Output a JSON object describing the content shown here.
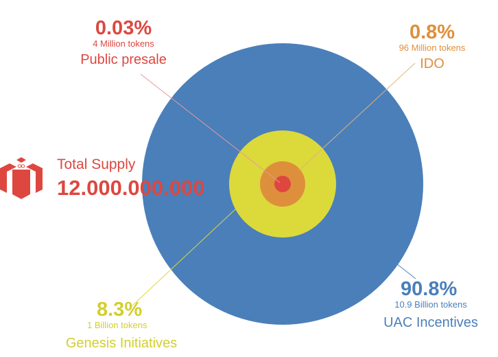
{
  "total": {
    "label": "Total Supply",
    "value": "12.000.000.000",
    "color": "#dd4740",
    "icon": "gift-box-icon"
  },
  "chart_data": {
    "type": "pie",
    "style": "nested concentric circles",
    "series": [
      {
        "name": "UAC Incentives",
        "percent_label": "90.8%",
        "tokens_label": "10.9 Billion tokens",
        "value": 90.8,
        "color": "#4a7fba"
      },
      {
        "name": "Genesis Initiatives",
        "percent_label": "8.3%",
        "tokens_label": "1 Billion tokens",
        "value": 8.3,
        "color": "#dcd93b"
      },
      {
        "name": "IDO",
        "percent_label": "0.8%",
        "tokens_label": "96 Million tokens",
        "value": 0.8,
        "color": "#de8f3c"
      },
      {
        "name": "Public presale",
        "percent_label": "0.03%",
        "tokens_label": "4 Million tokens",
        "value": 0.03,
        "color": "#dd4740"
      }
    ]
  }
}
